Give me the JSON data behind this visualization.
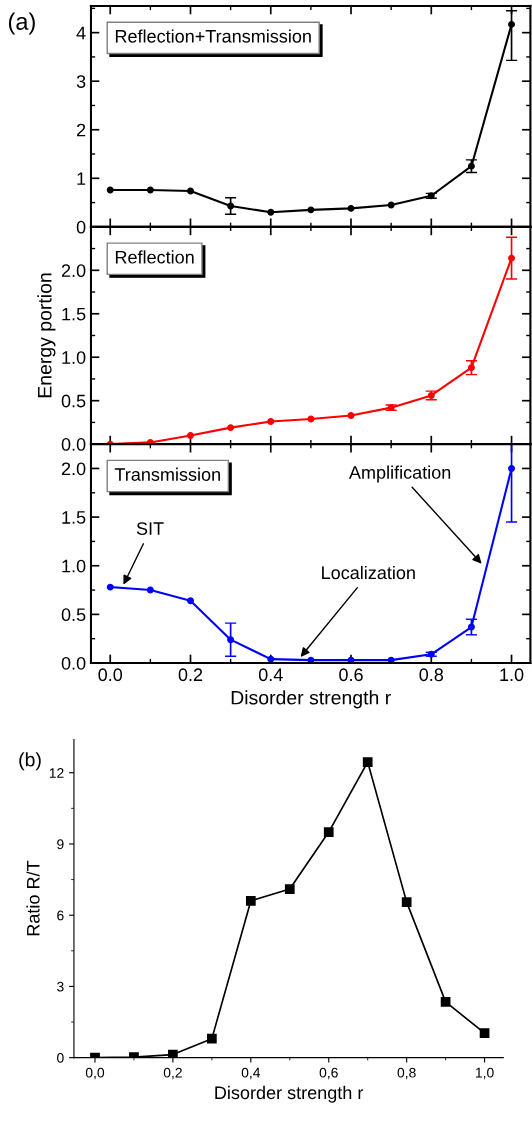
{
  "chart_data": [
    {
      "type": "line",
      "x": [
        0.0,
        0.1,
        0.2,
        0.3,
        0.4,
        0.5,
        0.6,
        0.7,
        0.8,
        0.9,
        1.0
      ],
      "xlim": [
        -0.048,
        1.047
      ],
      "xticks": [
        0.0,
        0.2,
        0.4,
        0.6,
        0.8,
        1.0
      ],
      "ylim": [
        0,
        4.55
      ],
      "yticks": [
        0,
        1,
        2,
        3,
        4
      ],
      "tick_labels": "y",
      "legend": "top left",
      "marker": "circle",
      "line_style": "solid",
      "grid": false,
      "series": [
        {
          "name": "Reflection+Transmission",
          "color": "#000000",
          "values": [
            0.76,
            0.76,
            0.74,
            0.43,
            0.3,
            0.35,
            0.38,
            0.45,
            0.64,
            1.25,
            4.17
          ],
          "errors": [
            null,
            null,
            null,
            0.17,
            null,
            null,
            null,
            null,
            0.05,
            0.13,
            [
              3.43,
              4.45
            ]
          ]
        }
      ],
      "annotations": [
        "(a)"
      ]
    },
    {
      "type": "line",
      "x": [
        0.0,
        0.1,
        0.2,
        0.3,
        0.4,
        0.5,
        0.6,
        0.7,
        0.8,
        0.9,
        1.0
      ],
      "xlim": [
        -0.048,
        1.047
      ],
      "xticks": [
        0.0,
        0.2,
        0.4,
        0.6,
        0.8,
        1.0
      ],
      "ylim": [
        0,
        2.5
      ],
      "yticks": [
        {
          "value": 0,
          "label": "0.0"
        },
        0.5,
        {
          "value": 1,
          "label": "1.0"
        },
        1.5,
        {
          "value": 2,
          "label": "2.0"
        }
      ],
      "ylabel": "Energy portion",
      "tick_labels": "y",
      "legend": "top left",
      "marker": "circle",
      "line_style": "solid",
      "grid": false,
      "series": [
        {
          "name": "Reflection",
          "color": "#ff0000",
          "values": [
            0.0,
            0.02,
            0.1,
            0.19,
            0.26,
            0.29,
            0.33,
            0.42,
            0.56,
            0.88,
            2.14
          ],
          "errors": [
            null,
            null,
            null,
            null,
            null,
            null,
            null,
            0.03,
            0.05,
            0.08,
            0.24
          ]
        }
      ]
    },
    {
      "type": "line",
      "x": [
        0.0,
        0.1,
        0.2,
        0.3,
        0.4,
        0.5,
        0.6,
        0.7,
        0.8,
        0.9,
        1.0
      ],
      "xlim": [
        -0.048,
        1.047
      ],
      "xticks": [
        {
          "value": 0,
          "label": "0.0"
        },
        0.2,
        0.4,
        0.6,
        0.8,
        {
          "value": 1,
          "label": "1.0"
        }
      ],
      "ylim": [
        0,
        2.25
      ],
      "yticks": [
        {
          "value": 0,
          "label": "0.0"
        },
        0.5,
        {
          "value": 1,
          "label": "1.0"
        },
        1.5,
        {
          "value": 2,
          "label": "2.0"
        }
      ],
      "xlabel": "Disorder strength r",
      "legend": "top left",
      "marker": "circle",
      "line_style": "solid",
      "grid": false,
      "series": [
        {
          "name": "Transmission",
          "color": "#0000ff",
          "values": [
            0.78,
            0.75,
            0.64,
            0.24,
            0.04,
            0.03,
            0.03,
            0.03,
            0.09,
            0.37,
            2.0
          ],
          "errors": [
            null,
            null,
            null,
            0.17,
            null,
            null,
            null,
            null,
            0.02,
            0.08,
            0.55
          ]
        }
      ],
      "annotations": [
        {
          "text": "SIT",
          "x": 0.03,
          "y": 0.78
        },
        {
          "text": "Localization",
          "x": 0.47,
          "y": 0.04
        },
        {
          "text": "Amplification",
          "x": 0.93,
          "y": 1.0
        }
      ]
    },
    {
      "type": "line",
      "x": [
        0.0,
        0.1,
        0.2,
        0.3,
        0.4,
        0.5,
        0.6,
        0.7,
        0.8,
        0.9,
        1.0
      ],
      "xlim": [
        -0.054,
        1.048
      ],
      "xticks": [
        {
          "value": 0,
          "label": "0,0"
        },
        {
          "value": 0.2,
          "label": "0,2"
        },
        {
          "value": 0.4,
          "label": "0,4"
        },
        {
          "value": 0.6,
          "label": "0,6"
        },
        {
          "value": 0.8,
          "label": "0,8"
        },
        {
          "value": 1,
          "label": "1,0"
        }
      ],
      "ylim": [
        0,
        13.4
      ],
      "yticks": [
        0,
        3,
        6,
        9,
        12
      ],
      "xlabel": "Disorder strength r",
      "ylabel": "Ratio R/T",
      "marker": "square",
      "line_style": "solid",
      "grid": false,
      "series": [
        {
          "color": "#000000",
          "values": [
            0.0,
            0.02,
            0.13,
            0.8,
            6.6,
            7.1,
            9.5,
            12.45,
            6.55,
            2.35,
            1.03
          ]
        }
      ],
      "annotations": [
        "(b)"
      ]
    }
  ]
}
